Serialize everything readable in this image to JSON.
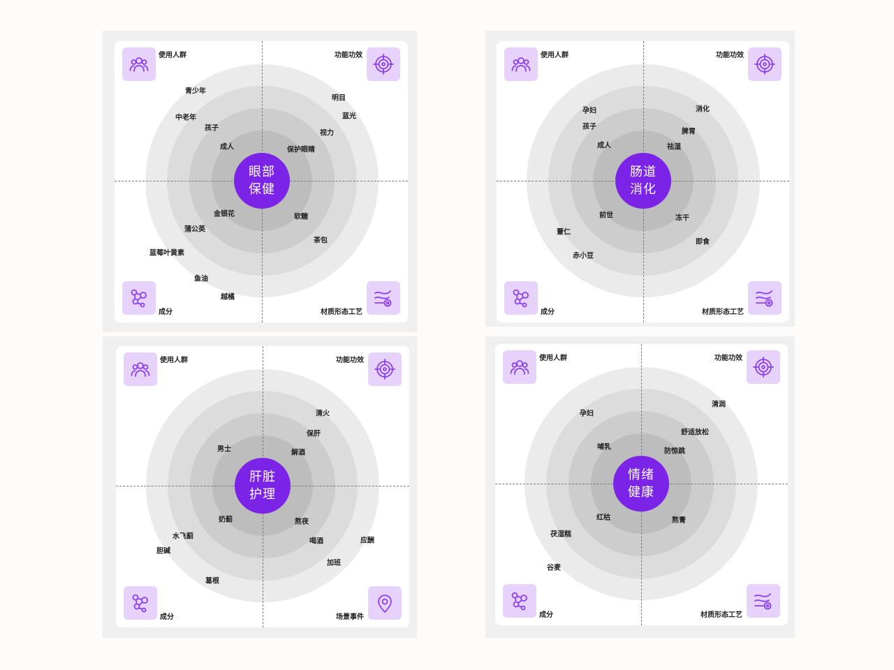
{
  "colors": {
    "accent": "#7b24e8",
    "icon_bg": "#e7d2fb",
    "icon_stroke": "#8a3ff0"
  },
  "panels": [
    {
      "center": [
        "眼部",
        "保健"
      ],
      "corners": {
        "tl": "使用人群",
        "tr": "功能功效",
        "bl": "成分",
        "br": "材质形态工艺"
      },
      "icons": {
        "tl": "people-icon",
        "tr": "target-icon",
        "bl": "molecule-icon",
        "br": "process-icon"
      },
      "labels": [
        "青少年",
        "中老年",
        "孩子",
        "成人",
        "明目",
        "蓝光",
        "视力",
        "保护眼睛",
        "金银花",
        "蒲公英",
        "蓝莓叶黄素",
        "鱼油",
        "越橘",
        "软糖",
        "茶包"
      ]
    },
    {
      "center": [
        "肠道",
        "消化"
      ],
      "corners": {
        "tl": "使用人群",
        "tr": "功能功效",
        "bl": "成分",
        "br": "材质形态工艺"
      },
      "icons": {
        "tl": "people-icon",
        "tr": "target-icon",
        "bl": "molecule-icon",
        "br": "process-icon"
      },
      "labels": [
        "孕妇",
        "孩子",
        "成人",
        "消化",
        "脾胃",
        "祛湿",
        "前世",
        "薏仁",
        "赤小豆",
        "冻干",
        "即食"
      ]
    },
    {
      "center": [
        "肝脏",
        "护理"
      ],
      "corners": {
        "tl": "使用人群",
        "tr": "功能功效",
        "bl": "成分",
        "br": "场景事件"
      },
      "icons": {
        "tl": "people-icon",
        "tr": "target-icon",
        "bl": "molecule-icon",
        "br": "location-pin-icon"
      },
      "labels": [
        "男士",
        "清火",
        "保肝",
        "解酒",
        "奶蓟",
        "水飞蓟",
        "胆碱",
        "葛根",
        "熬夜",
        "喝酒",
        "应酬",
        "加班"
      ]
    },
    {
      "center": [
        "情绪",
        "健康"
      ],
      "corners": {
        "tl": "使用人群",
        "tr": "功能功效",
        "bl": "成分",
        "br": "材质形态工艺"
      },
      "icons": {
        "tl": "people-icon",
        "tr": "target-icon",
        "bl": "molecule-icon",
        "br": "process-icon"
      },
      "labels": [
        "孕妇",
        "哺乳",
        "清润",
        "舒适放松",
        "防惊跳",
        "红枯",
        "茯湿糕",
        "谷麦",
        "熬膏"
      ]
    }
  ]
}
